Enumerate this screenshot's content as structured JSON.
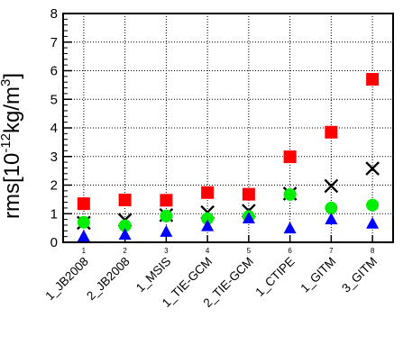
{
  "chart_data": {
    "type": "scatter",
    "ylabel": {
      "prefix": "rms[10",
      "exp1": "-12",
      "mid": "kg/m",
      "exp2": "3",
      "suffix": "]"
    },
    "ylim": [
      0,
      8
    ],
    "yticks": [
      0,
      1,
      2,
      3,
      4,
      5,
      6,
      7,
      8
    ],
    "x": [
      1,
      2,
      3,
      4,
      5,
      6,
      7,
      8
    ],
    "xlim": [
      0.5,
      8.5
    ],
    "categories": [
      "1_JB2008",
      "2_JB2008",
      "1_MSIS",
      "1_TIE-GCM",
      "2_TIE-GCM",
      "1_CTIPE",
      "1_GITM",
      "3_GITM"
    ],
    "grid": true,
    "series": [
      {
        "marker": "square",
        "color": "#ff0000",
        "values": [
          1.35,
          1.48,
          1.47,
          1.74,
          1.68,
          2.99,
          3.85,
          5.7
        ]
      },
      {
        "marker": "cross",
        "color": "#000000",
        "values": [
          0.68,
          0.78,
          0.95,
          1.05,
          1.1,
          1.7,
          1.97,
          2.58
        ]
      },
      {
        "marker": "circle",
        "color": "#00ee00",
        "values": [
          0.7,
          0.58,
          0.92,
          0.83,
          0.9,
          1.67,
          1.2,
          1.3
        ]
      },
      {
        "marker": "triangle",
        "color": "#0000ff",
        "values": [
          0.22,
          0.28,
          0.38,
          0.58,
          0.85,
          0.5,
          0.82,
          0.67
        ]
      }
    ]
  }
}
